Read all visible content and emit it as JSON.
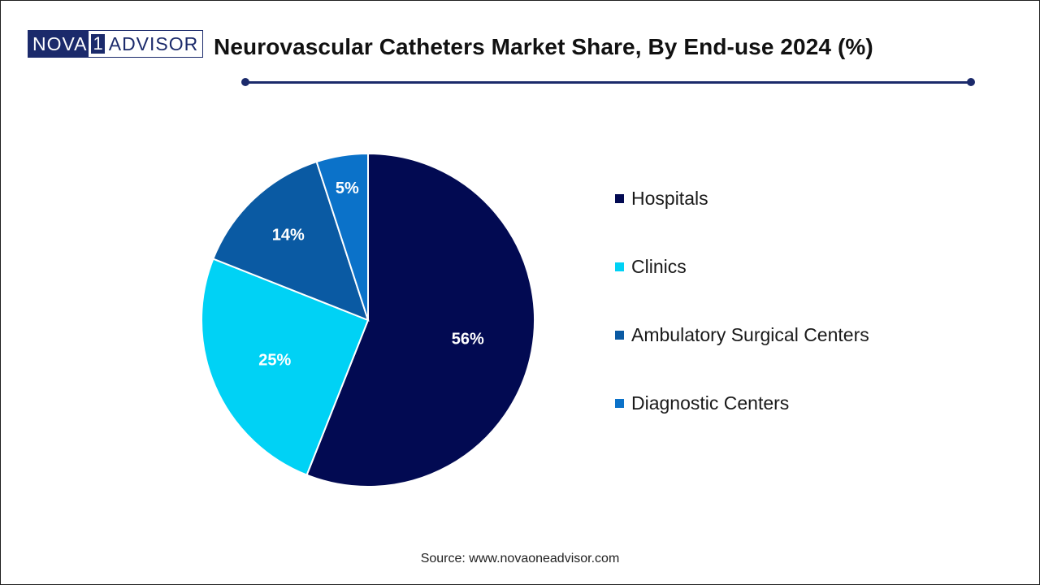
{
  "brand": {
    "part1": "NOVA",
    "part2": "1",
    "part3": "ADVISOR"
  },
  "header": {
    "title": "Neurovascular Catheters Market Share, By End-use 2024 (%)"
  },
  "chart_data": {
    "type": "pie",
    "title": "Neurovascular Catheters Market Share, By End-use 2024 (%)",
    "categories": [
      "Hospitals",
      "Clinics",
      "Ambulatory Surgical Centers",
      "Diagnostic Centers"
    ],
    "values": [
      56,
      25,
      14,
      5
    ],
    "labels": [
      "56%",
      "25%",
      "14%",
      "5%"
    ],
    "colors": [
      "#020a52",
      "#00d2f5",
      "#0a5aa3",
      "#0b72c9"
    ],
    "start": "12 o'clock, clockwise",
    "legend_position": "right"
  },
  "footer": {
    "source": "Source: www.novaoneadvisor.com"
  }
}
